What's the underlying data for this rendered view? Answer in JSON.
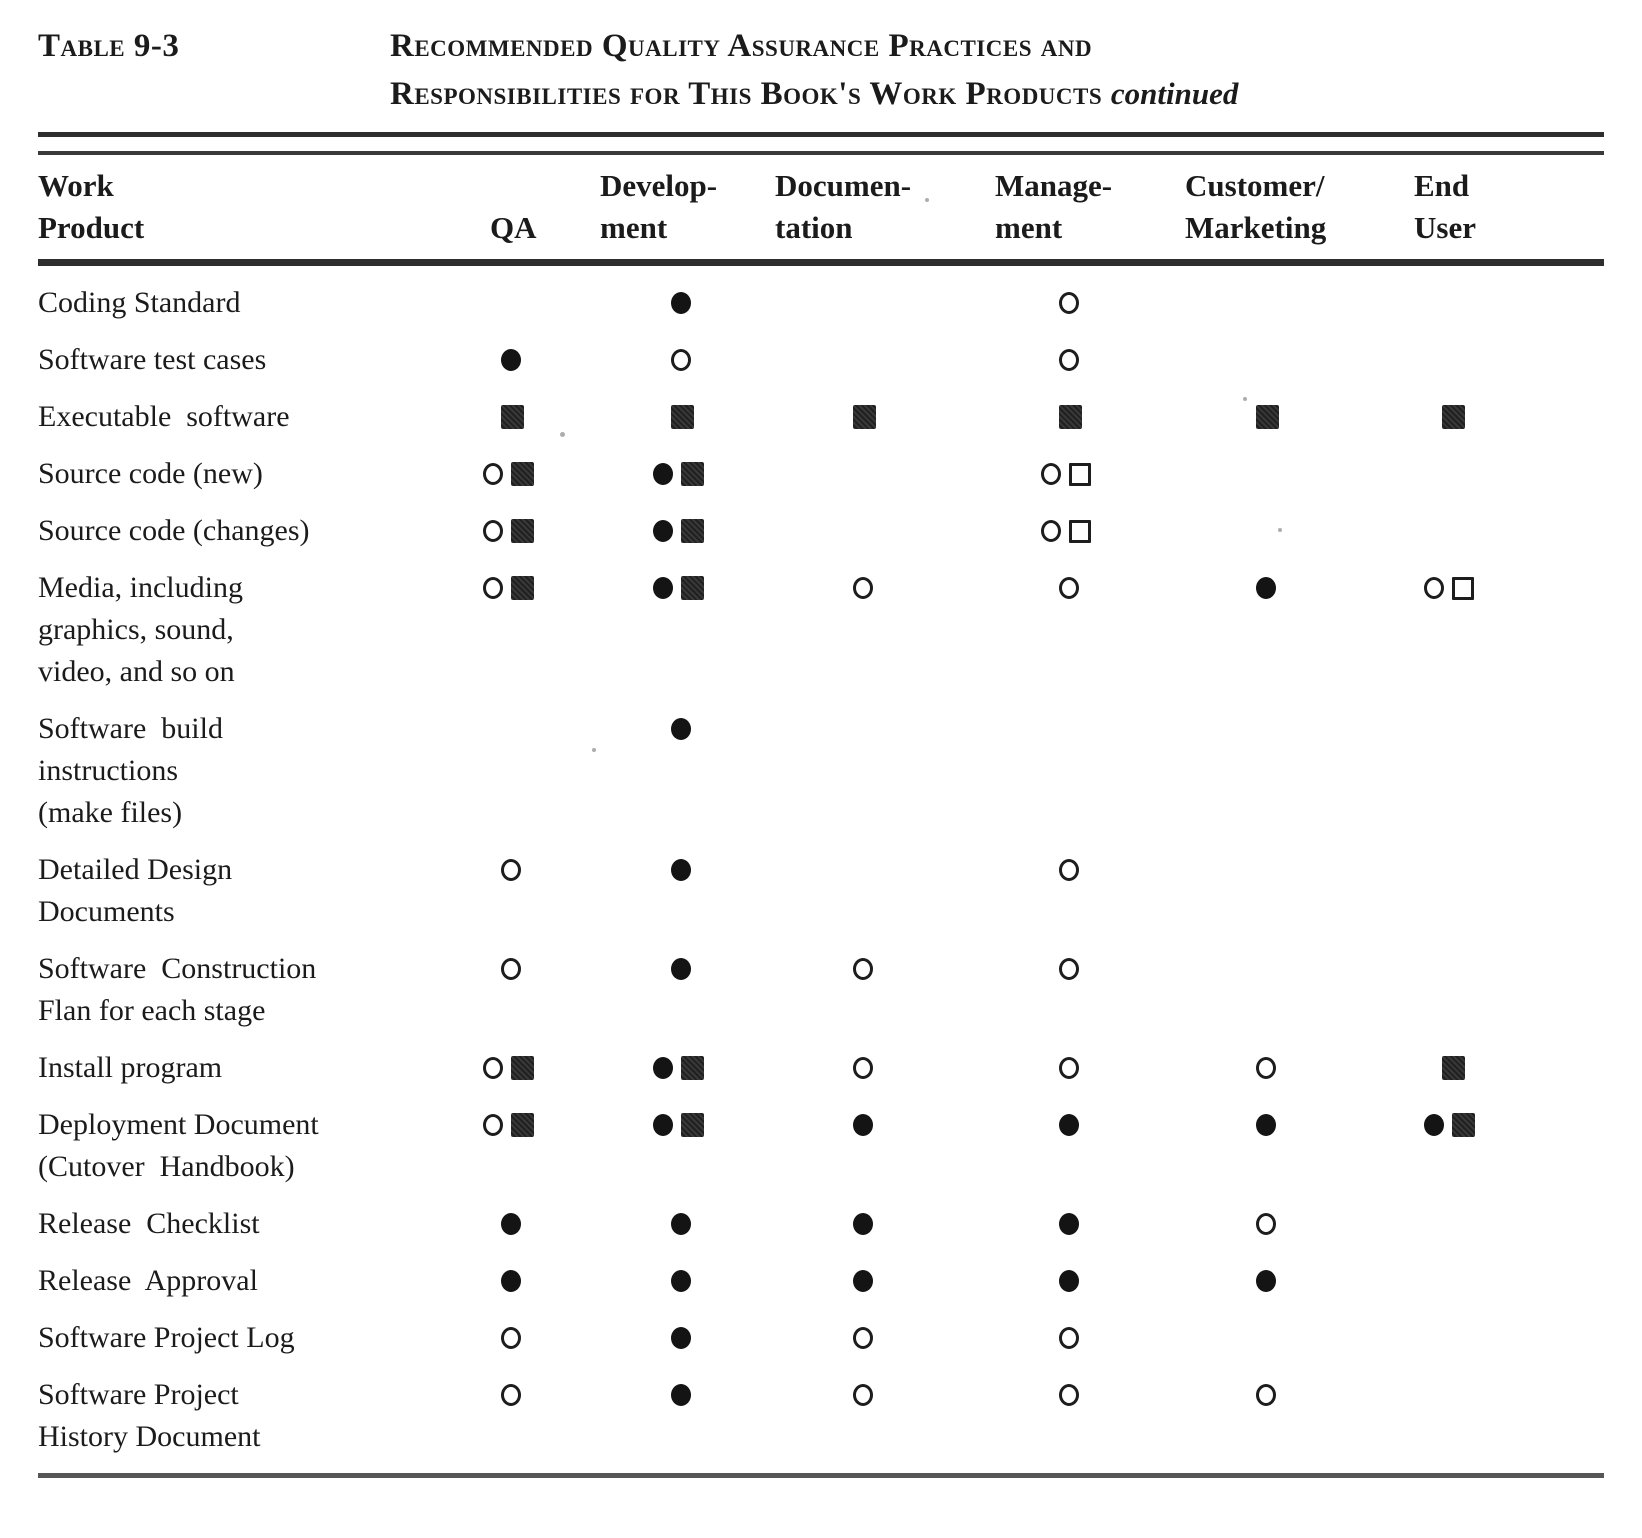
{
  "table": {
    "label": "Table 9-3",
    "title_line1": "Recommended Quality Assurance Practices and",
    "title_line2": "Responsibilities for This Book's Work Products",
    "continued": "continued",
    "columns": [
      {
        "line1": "Work",
        "line2": "Product"
      },
      {
        "line1": "",
        "line2": "QA"
      },
      {
        "line1": "Develop-",
        "line2": "ment"
      },
      {
        "line1": "Documen-",
        "line2": "tation"
      },
      {
        "line1": "Manage-",
        "line2": "ment"
      },
      {
        "line1": "Customer/",
        "line2": "Marketing"
      },
      {
        "line1": "End",
        "line2": "User"
      }
    ],
    "column_keys": [
      "qa",
      "development",
      "documentation",
      "management",
      "customer-marketing",
      "end-user"
    ],
    "symbols": {
      "filled-circle": "●",
      "open-circle": "○",
      "filled-square": "■",
      "open-square": "□"
    },
    "rows": [
      {
        "product_lines": [
          "Coding Standard"
        ],
        "cells": [
          [],
          [
            "filled-circle"
          ],
          [],
          [
            "open-circle"
          ],
          [],
          []
        ]
      },
      {
        "product_lines": [
          "Software test cases"
        ],
        "cells": [
          [
            "filled-circle"
          ],
          [
            "open-circle"
          ],
          [],
          [
            "open-circle"
          ],
          [],
          []
        ]
      },
      {
        "product_lines": [
          "Executable  software"
        ],
        "cells": [
          [
            "filled-square"
          ],
          [
            "filled-square"
          ],
          [
            "filled-square"
          ],
          [
            "filled-square"
          ],
          [
            "filled-square"
          ],
          [
            "filled-square"
          ]
        ]
      },
      {
        "product_lines": [
          "Source code (new)"
        ],
        "cells": [
          [
            "open-circle",
            "filled-square"
          ],
          [
            "filled-circle",
            "filled-square"
          ],
          [],
          [
            "open-circle",
            "open-square"
          ],
          [],
          []
        ]
      },
      {
        "product_lines": [
          "Source code (changes)"
        ],
        "cells": [
          [
            "open-circle",
            "filled-square"
          ],
          [
            "filled-circle",
            "filled-square"
          ],
          [],
          [
            "open-circle",
            "open-square"
          ],
          [],
          []
        ]
      },
      {
        "product_lines": [
          "Media, including",
          "graphics, sound,",
          "video, and so on"
        ],
        "cells": [
          [
            "open-circle",
            "filled-square"
          ],
          [
            "filled-circle",
            "filled-square"
          ],
          [
            "open-circle"
          ],
          [
            "open-circle"
          ],
          [
            "filled-circle"
          ],
          [
            "open-circle",
            "open-square"
          ]
        ]
      },
      {
        "product_lines": [
          "Software  build",
          "instructions",
          "(make files)"
        ],
        "cells": [
          [],
          [
            "filled-circle"
          ],
          [],
          [],
          [],
          []
        ]
      },
      {
        "product_lines": [
          "Detailed Design",
          "Documents"
        ],
        "cells": [
          [
            "open-circle"
          ],
          [
            "filled-circle"
          ],
          [],
          [
            "open-circle"
          ],
          [],
          []
        ]
      },
      {
        "product_lines": [
          "Software  Construction",
          "Flan for each stage"
        ],
        "cells": [
          [
            "open-circle"
          ],
          [
            "filled-circle"
          ],
          [
            "open-circle"
          ],
          [
            "open-circle"
          ],
          [],
          []
        ]
      },
      {
        "product_lines": [
          "Install program"
        ],
        "cells": [
          [
            "open-circle",
            "filled-square"
          ],
          [
            "filled-circle",
            "filled-square"
          ],
          [
            "open-circle"
          ],
          [
            "open-circle"
          ],
          [
            "open-circle"
          ],
          [
            "filled-square"
          ]
        ]
      },
      {
        "product_lines": [
          "Deployment Document",
          "(Cutover  Handbook)"
        ],
        "cells": [
          [
            "open-circle",
            "filled-square"
          ],
          [
            "filled-circle",
            "filled-square"
          ],
          [
            "filled-circle"
          ],
          [
            "filled-circle"
          ],
          [
            "filled-circle"
          ],
          [
            "filled-circle",
            "filled-square"
          ]
        ]
      },
      {
        "product_lines": [
          "Release  Checklist"
        ],
        "cells": [
          [
            "filled-circle"
          ],
          [
            "filled-circle"
          ],
          [
            "filled-circle"
          ],
          [
            "filled-circle"
          ],
          [
            "open-circle"
          ],
          []
        ]
      },
      {
        "product_lines": [
          "Release  Approval"
        ],
        "cells": [
          [
            "filled-circle"
          ],
          [
            "filled-circle"
          ],
          [
            "filled-circle"
          ],
          [
            "filled-circle"
          ],
          [
            "filled-circle"
          ],
          []
        ]
      },
      {
        "product_lines": [
          "Software Project Log"
        ],
        "cells": [
          [
            "open-circle"
          ],
          [
            "filled-circle"
          ],
          [
            "open-circle"
          ],
          [
            "open-circle"
          ],
          [],
          []
        ]
      },
      {
        "product_lines": [
          "Software Project",
          "History Document"
        ],
        "cells": [
          [
            "open-circle"
          ],
          [
            "filled-circle"
          ],
          [
            "open-circle"
          ],
          [
            "open-circle"
          ],
          [
            "open-circle"
          ],
          []
        ]
      }
    ]
  },
  "ink_color": "#1b1b1b",
  "paper_color": "#ffffff"
}
